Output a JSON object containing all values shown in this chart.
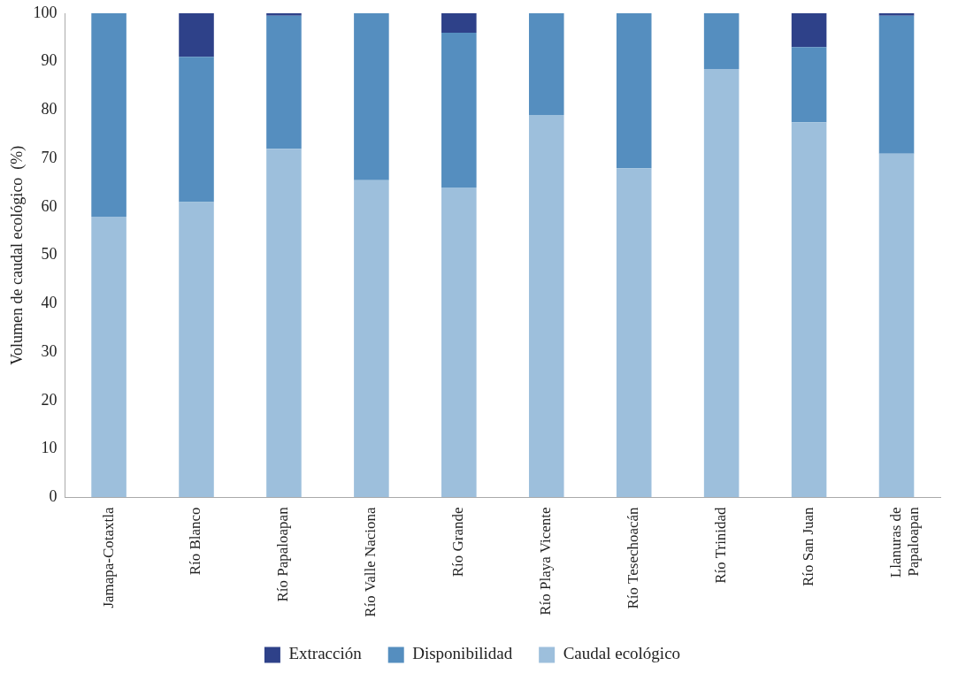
{
  "chart_data": {
    "type": "bar",
    "stacked": true,
    "ylabel": "Volumen de caudal ecológico  (%)",
    "categories": [
      "Jamapa-Cotaxtla",
      "Río Blanco",
      "Río Papaloapan",
      "Río Valle Naciona",
      "Río Grande",
      "Río Playa Vicente",
      "Río Tesechoacán",
      "Río Trinidad",
      "Río San Juan",
      "Llanuras de Papaloapan"
    ],
    "series": [
      {
        "name": "Caudal ecológico",
        "color": "#9dbfdc",
        "values": [
          58,
          61,
          72,
          65.5,
          64,
          79,
          68,
          88.5,
          77.5,
          71
        ]
      },
      {
        "name": "Disponibilidad",
        "color": "#558ebf",
        "values": [
          42,
          30,
          27.5,
          34.5,
          32,
          21,
          32,
          11.5,
          15.5,
          28.5
        ]
      },
      {
        "name": "Extracción",
        "color": "#2e4189",
        "values": [
          0,
          9,
          0.5,
          0,
          4,
          0,
          0,
          0,
          7,
          0.5
        ]
      }
    ],
    "ylim": [
      0,
      100
    ],
    "yticks": [
      0,
      10,
      20,
      30,
      40,
      50,
      60,
      70,
      80,
      90,
      100
    ],
    "grid": false,
    "legend": "bottom"
  }
}
